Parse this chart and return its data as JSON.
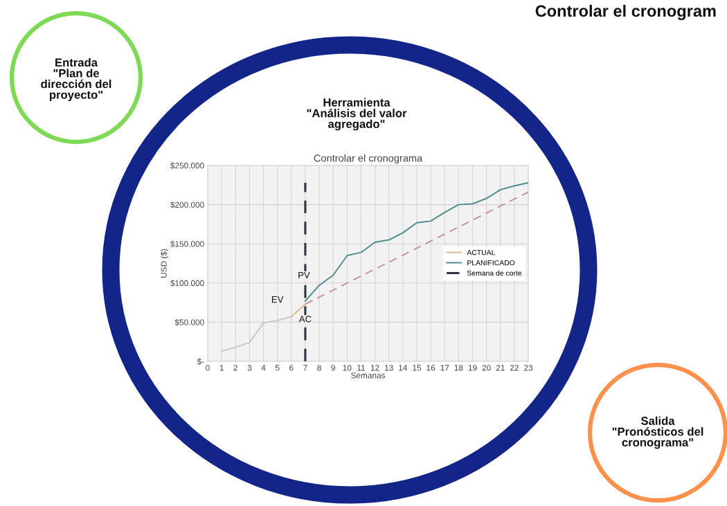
{
  "chart_data": {
    "type": "line",
    "title": "Controlar el cronograma",
    "xlabel": "Semanas",
    "ylabel": "USD ($)",
    "xlim": [
      0,
      23
    ],
    "xticks": [
      0,
      1,
      2,
      3,
      4,
      5,
      6,
      7,
      8,
      9,
      10,
      11,
      12,
      13,
      14,
      15,
      16,
      17,
      18,
      19,
      20,
      21,
      22,
      23
    ],
    "ylim": [
      0,
      250000
    ],
    "yticks": [
      {
        "value": 0,
        "label": "$-"
      },
      {
        "value": 50000,
        "label": "$50.000"
      },
      {
        "value": 100000,
        "label": "$100.000"
      },
      {
        "value": 150000,
        "label": "$150.000"
      },
      {
        "value": 200000,
        "label": "$200.000"
      },
      {
        "value": 250000,
        "label": "$250.000"
      }
    ],
    "grid": true,
    "legend": "right",
    "marker": "none",
    "series": [
      {
        "color": "#c8c8c8",
        "x": [
          1,
          2,
          3,
          4,
          5,
          6
        ],
        "values": [
          13000,
          18000,
          24000,
          49000,
          52000,
          57000
        ]
      },
      {
        "name": "ACTUAL",
        "color": "#d9b98a",
        "x": [
          6,
          7
        ],
        "values": [
          57000,
          73000
        ]
      },
      {
        "name": "PLANIFICADO",
        "color": "#4e8a8c",
        "x": [
          7,
          8,
          9,
          10,
          11,
          12,
          13,
          14,
          15,
          16,
          17,
          18,
          19,
          20,
          21,
          22,
          23
        ],
        "values": [
          77000,
          97000,
          110000,
          135000,
          139000,
          152000,
          155000,
          164000,
          177000,
          179000,
          190000,
          200000,
          201000,
          208000,
          219000,
          224000,
          228000
        ]
      },
      {
        "color": "#c98f9a",
        "line_style": "dashed",
        "x": [
          7,
          23
        ],
        "values": [
          73000,
          216000
        ]
      },
      {
        "name": "Semana de corte",
        "color": "#2b3440",
        "line_style": "dashed",
        "x": [
          7,
          7
        ],
        "values": [
          0,
          228000
        ]
      }
    ],
    "annotations": [
      "Controlar el cronogram",
      "Entrada\n\"Plan de\ndirección del\nproyecto\"",
      "Herramienta\n\"Análisis del valor\nagregado\"",
      "Salida\n\"Pronósticos del\ncronograma\"",
      {
        "text": "PV",
        "x": 6.9,
        "y": 109000
      },
      {
        "text": "EV",
        "x": 5,
        "y": 78000
      },
      {
        "text": "AC",
        "x": 7,
        "y": 53000
      }
    ]
  }
}
